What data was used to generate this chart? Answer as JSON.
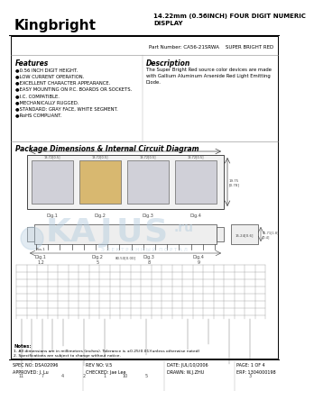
{
  "title": "14.22mm (0.56INCH) FOUR DIGIT NUMERIC\nDISPLAY",
  "brand": "Kingbright",
  "part_number": "CA56-21SRWA",
  "color_label": "SUPER BRIGHT RED",
  "features_title": "Features",
  "features": [
    "●0.56 INCH DIGIT HEIGHT.",
    "●LOW CURRENT OPERATION.",
    "●EXCELLENT CHARACTER APPEARANCE.",
    "●EASY MOUNTING ON P.C. BOARDS OR SOCKETS.",
    "●I.C. COMPATIBLE.",
    "●MECHANICALLY RUGGED.",
    "●STANDARD: GRAY FACE, WHITE SEGMENT.",
    "●RoHS COMPLIANT."
  ],
  "description_title": "Description",
  "description": "The Super Bright Red source color devices are made\nwith Gallium Aluminum Arsenide Red Light Emitting\nDiode.",
  "package_title": "Package Dimensions & Internal Circuit Diagram",
  "footer_left1": "SPEC NO: DSA02096",
  "footer_left2": "APPROVED: J. Lu",
  "footer_mid1": "REV NO: V.5",
  "footer_mid2": "CHECKED: Jae Lee",
  "footer_date1": "DATE: JUL/10/2006",
  "footer_date2": "DRAWN: W.J.ZHU",
  "footer_right1": "PAGE: 1 OF 4",
  "footer_right2": "ERP: 1304000198",
  "bg_color": "#ffffff",
  "text_color": "#000000",
  "dim_color": "#444444",
  "watermark_color": "#b8cfe0",
  "watermark_text_color": "#99b8cc"
}
